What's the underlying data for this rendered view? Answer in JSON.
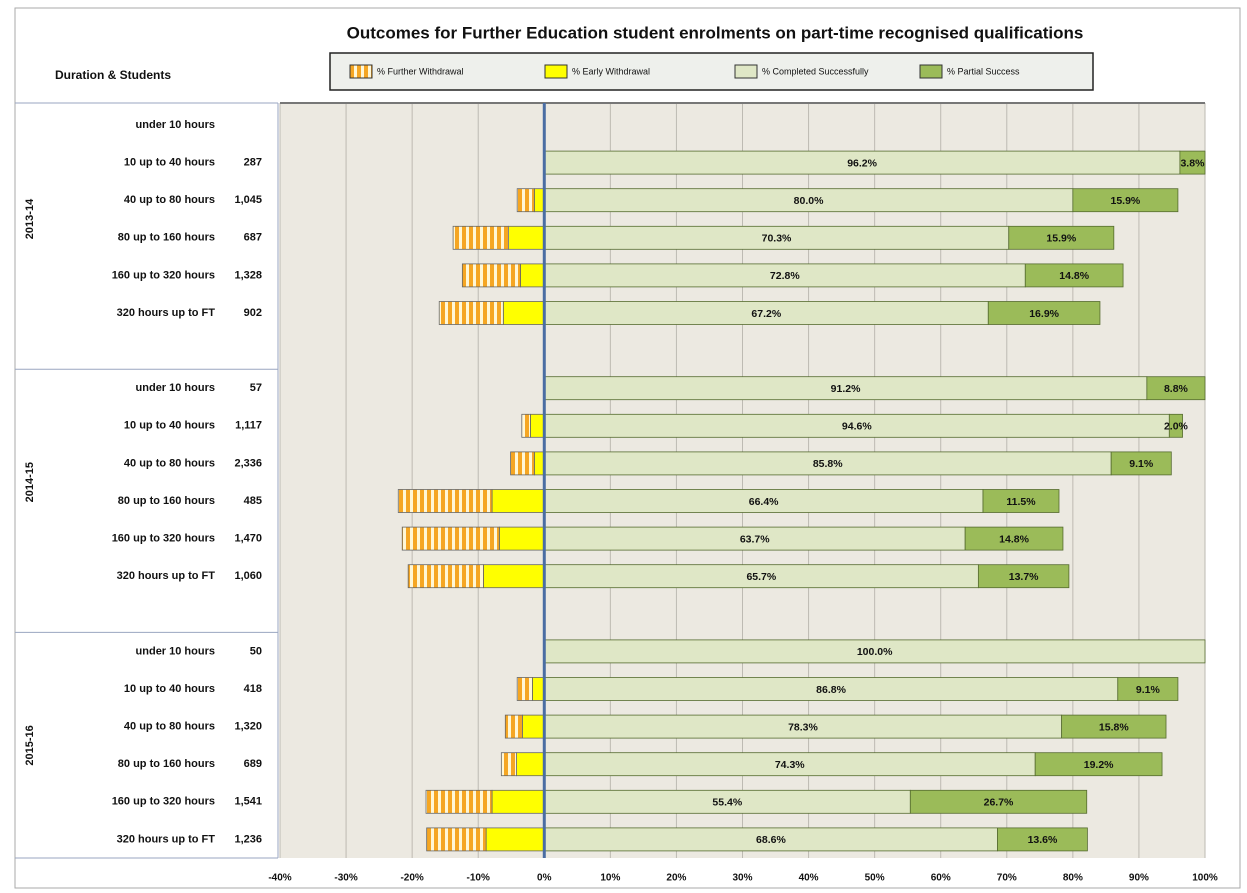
{
  "chart_data": {
    "type": "diverging-stacked-bar",
    "title": "Outcomes for Further Education student enrolments on part-time recognised qualifications",
    "row_header": "Duration & Students",
    "groups": [
      "2013-14",
      "2014-15",
      "2015-16"
    ],
    "categories": [
      "under 10 hours",
      "10 up to 40 hours",
      "40 up to 80 hours",
      "80 up to 160 hours",
      "160 up to 320 hours",
      "320 hours up to FT",
      "under 10 hours",
      "10 up to 40 hours",
      "40 up to 80 hours",
      "80 up to 160 hours",
      "160 up to 320 hours",
      "320 hours up to FT",
      "under 10 hours",
      "10 up to 40 hours",
      "40 up to 80 hours",
      "80 up to 160 hours",
      "160 up to 320 hours",
      "320 hours up to FT"
    ],
    "students": [
      null,
      "287",
      "1,045",
      "687",
      "1,328",
      "902",
      "57",
      "1,117",
      "2,336",
      "485",
      "1,470",
      "1,060",
      "50",
      "418",
      "1,320",
      "689",
      "1,541",
      "1,236"
    ],
    "series": [
      {
        "name": "% Further Withdrawal",
        "color": "#f5a623",
        "side": "negative",
        "values": [
          null,
          0,
          -2.6,
          -8.4,
          -8.8,
          -9.7,
          0,
          -1.3,
          -3.6,
          -14.2,
          -14.7,
          -11.4,
          0,
          -2.3,
          -2.6,
          -2.3,
          -10.0,
          -9.0
        ]
      },
      {
        "name": "% Early Withdrawal",
        "color": "#ffff00",
        "side": "negative",
        "values": [
          null,
          0,
          -1.5,
          -5.4,
          -3.6,
          -6.2,
          0,
          -2.1,
          -1.5,
          -7.9,
          -6.8,
          -9.2,
          0,
          -1.8,
          -3.3,
          -4.2,
          -7.9,
          -8.8
        ]
      },
      {
        "name": "% Completed Successfully",
        "color": "#dfe7c6",
        "side": "positive",
        "values": [
          null,
          96.2,
          80.0,
          70.3,
          72.8,
          67.2,
          91.2,
          94.6,
          85.8,
          66.4,
          63.7,
          65.7,
          100.0,
          86.8,
          78.3,
          74.3,
          55.4,
          68.6
        ],
        "value_labels": [
          null,
          "96.2%",
          "80.0%",
          "70.3%",
          "72.8%",
          "67.2%",
          "91.2%",
          "94.6%",
          "85.8%",
          "66.4%",
          "63.7%",
          "65.7%",
          "100.0%",
          "86.8%",
          "78.3%",
          "74.3%",
          "55.4%",
          "68.6%"
        ]
      },
      {
        "name": "% Partial Success",
        "color": "#9bbb59",
        "side": "positive",
        "values": [
          null,
          3.8,
          15.9,
          15.9,
          14.8,
          16.9,
          8.8,
          2.0,
          9.1,
          11.5,
          14.8,
          13.7,
          0,
          9.1,
          15.8,
          19.2,
          26.7,
          13.6
        ],
        "value_labels": [
          null,
          "3.8%",
          "15.9%",
          "15.9%",
          "14.8%",
          "16.9%",
          "8.8%",
          "2.0%",
          "9.1%",
          "11.5%",
          "14.8%",
          "13.7%",
          null,
          "9.1%",
          "15.8%",
          "19.2%",
          "26.7%",
          "13.6%"
        ]
      }
    ],
    "xlim": [
      -40,
      100
    ],
    "xticks": [
      {
        "value": -40,
        "label": "-40%"
      },
      {
        "value": -30,
        "label": "-30%"
      },
      {
        "value": -20,
        "label": "-20%"
      },
      {
        "value": -10,
        "label": "-10%"
      },
      {
        "value": 0,
        "label": "0%"
      },
      {
        "value": 10,
        "label": "10%"
      },
      {
        "value": 20,
        "label": "20%"
      },
      {
        "value": 30,
        "label": "30%"
      },
      {
        "value": 40,
        "label": "40%"
      },
      {
        "value": 50,
        "label": "50%"
      },
      {
        "value": 60,
        "label": "60%"
      },
      {
        "value": 70,
        "label": "70%"
      },
      {
        "value": 80,
        "label": "80%"
      },
      {
        "value": 90,
        "label": "90%"
      },
      {
        "value": 100,
        "label": "100%"
      }
    ],
    "grid": true
  }
}
